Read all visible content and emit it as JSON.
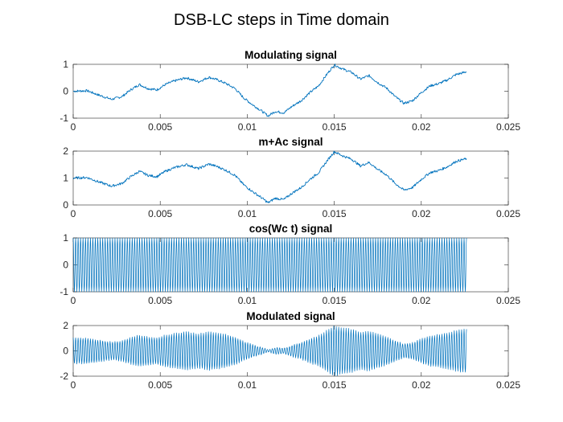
{
  "figure": {
    "suptitle": "DSB-LC steps in Time domain",
    "line_color": "#0072BD"
  },
  "chart_data": [
    {
      "type": "line",
      "title": "Modulating signal",
      "xlabel": "",
      "ylabel": "",
      "xlim": [
        0,
        0.025
      ],
      "ylim": [
        -1,
        1
      ],
      "xticks": [
        0,
        0.005,
        0.01,
        0.015,
        0.02,
        0.025
      ],
      "xtick_labels": [
        "0",
        "0.005",
        "0.01",
        "0.015",
        "0.02",
        "0.025"
      ],
      "yticks": [
        -1,
        0,
        1
      ],
      "ytick_labels": [
        "-1",
        "0",
        "1"
      ],
      "series": [
        {
          "x": [
            0,
            0.0008,
            0.0015,
            0.0022,
            0.0028,
            0.0033,
            0.0038,
            0.0043,
            0.0048,
            0.0053,
            0.0058,
            0.0065,
            0.0072,
            0.0078,
            0.0083,
            0.0088,
            0.0093,
            0.0098,
            0.0103,
            0.0108,
            0.0112,
            0.0116,
            0.0121,
            0.0126,
            0.0131,
            0.0136,
            0.0141,
            0.0146,
            0.015,
            0.0155,
            0.016,
            0.0165,
            0.017,
            0.0175,
            0.018,
            0.0185,
            0.019,
            0.0195,
            0.02,
            0.0205,
            0.021,
            0.0215,
            0.022,
            0.0226
          ],
          "y": [
            0.0,
            0.02,
            -0.15,
            -0.3,
            -0.2,
            0.05,
            0.25,
            0.1,
            0.05,
            0.25,
            0.38,
            0.5,
            0.35,
            0.52,
            0.42,
            0.28,
            0.1,
            -0.25,
            -0.5,
            -0.72,
            -0.92,
            -0.75,
            -0.8,
            -0.55,
            -0.35,
            -0.05,
            0.2,
            0.65,
            0.98,
            0.82,
            0.7,
            0.45,
            0.58,
            0.32,
            0.12,
            -0.2,
            -0.45,
            -0.35,
            -0.05,
            0.2,
            0.28,
            0.42,
            0.62,
            0.72
          ]
        }
      ]
    },
    {
      "type": "line",
      "title": "m+Ac signal",
      "xlabel": "",
      "ylabel": "",
      "xlim": [
        0,
        0.025
      ],
      "ylim": [
        0,
        2
      ],
      "xticks": [
        0,
        0.005,
        0.01,
        0.015,
        0.02,
        0.025
      ],
      "xtick_labels": [
        "0",
        "0.005",
        "0.01",
        "0.015",
        "0.02",
        "0.025"
      ],
      "yticks": [
        0,
        1,
        2
      ],
      "ytick_labels": [
        "0",
        "1",
        "2"
      ],
      "series": [
        {
          "x": [
            0,
            0.0008,
            0.0015,
            0.0022,
            0.0028,
            0.0033,
            0.0038,
            0.0043,
            0.0048,
            0.0053,
            0.0058,
            0.0065,
            0.0072,
            0.0078,
            0.0083,
            0.0088,
            0.0093,
            0.0098,
            0.0103,
            0.0108,
            0.0112,
            0.0116,
            0.0121,
            0.0126,
            0.0131,
            0.0136,
            0.0141,
            0.0146,
            0.015,
            0.0155,
            0.016,
            0.0165,
            0.017,
            0.0175,
            0.018,
            0.0185,
            0.019,
            0.0195,
            0.02,
            0.0205,
            0.021,
            0.0215,
            0.022,
            0.0226
          ],
          "y": [
            1.0,
            1.02,
            0.85,
            0.7,
            0.8,
            1.05,
            1.25,
            1.1,
            1.05,
            1.25,
            1.38,
            1.5,
            1.35,
            1.52,
            1.42,
            1.28,
            1.1,
            0.75,
            0.5,
            0.28,
            0.08,
            0.25,
            0.2,
            0.45,
            0.65,
            0.95,
            1.2,
            1.65,
            1.98,
            1.82,
            1.7,
            1.45,
            1.58,
            1.32,
            1.12,
            0.8,
            0.55,
            0.65,
            0.95,
            1.2,
            1.28,
            1.42,
            1.62,
            1.72
          ]
        }
      ]
    },
    {
      "type": "line",
      "title": "cos(Wc t) signal",
      "xlabel": "",
      "ylabel": "",
      "xlim": [
        0,
        0.025
      ],
      "ylim": [
        -1,
        1
      ],
      "xticks": [
        0,
        0.005,
        0.01,
        0.015,
        0.02,
        0.025
      ],
      "xtick_labels": [
        "0",
        "0.005",
        "0.01",
        "0.015",
        "0.02",
        "0.025"
      ],
      "yticks": [
        -1,
        0,
        1
      ],
      "ytick_labels": [
        "-1",
        "0",
        "1"
      ],
      "series": [
        {
          "kind": "carrier",
          "x_end": 0.0226,
          "cycles": 160,
          "amplitude": 1
        }
      ]
    },
    {
      "type": "line",
      "title": "Modulated signal",
      "xlabel": "",
      "ylabel": "",
      "xlim": [
        0,
        0.025
      ],
      "ylim": [
        -2,
        2
      ],
      "xticks": [
        0,
        0.005,
        0.01,
        0.015,
        0.02,
        0.025
      ],
      "xtick_labels": [
        "0",
        "0.005",
        "0.01",
        "0.015",
        "0.02",
        "0.025"
      ],
      "yticks": [
        -2,
        0,
        2
      ],
      "ytick_labels": [
        "-2",
        "0",
        "2"
      ],
      "series": [
        {
          "kind": "modulated",
          "envelope_of_panel": 1,
          "x_end": 0.0226,
          "cycles": 160
        }
      ]
    }
  ]
}
